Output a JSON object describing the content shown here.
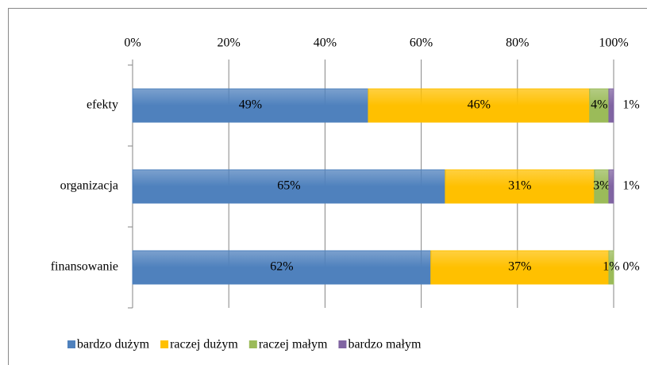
{
  "chart_data": {
    "type": "stacked_bar_horizontal",
    "categories": [
      "efekty",
      "organizacja",
      "finansowanie"
    ],
    "series": [
      {
        "name": "bardzo dużym",
        "color": "#4f81bd",
        "values": [
          49,
          65,
          62
        ],
        "value_labels": [
          "49%",
          "65%",
          "62%"
        ]
      },
      {
        "name": "raczej dużym",
        "color": "#ffc000",
        "values": [
          46,
          31,
          37
        ],
        "value_labels": [
          "46%",
          "31%",
          "37%"
        ]
      },
      {
        "name": "raczej małym",
        "color": "#9bbb59",
        "values": [
          4,
          3,
          1
        ],
        "value_labels": [
          "4%",
          "3%",
          "1%"
        ]
      },
      {
        "name": "bardzo małym",
        "color": "#8064a2",
        "values": [
          1,
          1,
          0
        ],
        "value_labels": [
          "1%",
          "1%",
          "0%"
        ]
      }
    ],
    "xlim": [
      0,
      100
    ],
    "xticks": [
      {
        "value": 0,
        "label": "0%"
      },
      {
        "value": 20,
        "label": "20%"
      },
      {
        "value": 40,
        "label": "40%"
      },
      {
        "value": 60,
        "label": "60%"
      },
      {
        "value": 80,
        "label": "80%"
      },
      {
        "value": 100,
        "label": "100%"
      }
    ],
    "grid": true,
    "legend": "bottom"
  }
}
